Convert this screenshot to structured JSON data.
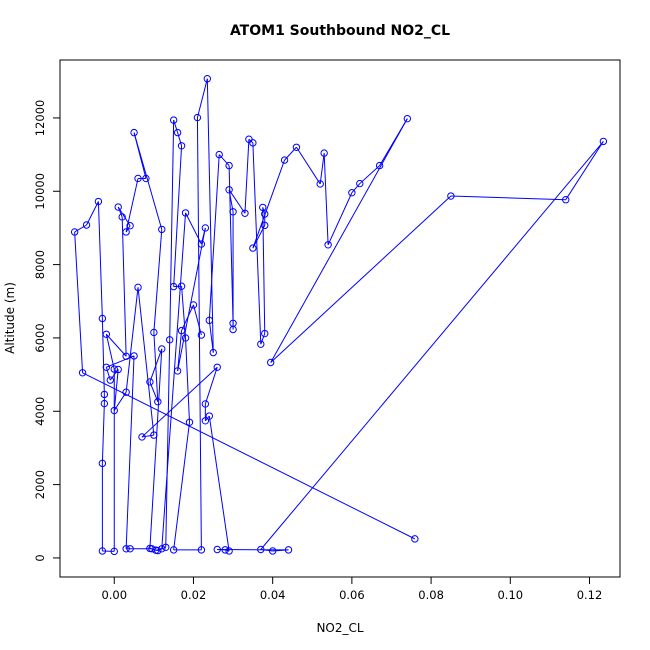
{
  "chart_data": {
    "type": "scatter",
    "title": "ATOM1 Southbound NO2_CL",
    "xlabel": "NO2_CL",
    "ylabel": "Altitude (m)",
    "xlim": [
      -0.0137,
      0.1277
    ],
    "ylim": [
      -520,
      13580
    ],
    "x_ticks": [
      0.0,
      0.02,
      0.04,
      0.06,
      0.08,
      0.1,
      0.12
    ],
    "x_tick_labels": [
      "0.00",
      "0.02",
      "0.04",
      "0.06",
      "0.08",
      "0.10",
      "0.12"
    ],
    "y_ticks": [
      0,
      2000,
      4000,
      6000,
      8000,
      10000,
      12000
    ],
    "y_tick_labels": [
      "0",
      "2000",
      "4000",
      "6000",
      "8000",
      "10000",
      "12000"
    ],
    "grid": false,
    "legend": "none",
    "style": "points connected by lines (type b), open circles",
    "series_color": "#0000ff",
    "series": [
      {
        "points": [
          [
            0.0759,
            520
          ],
          [
            -0.008,
            5050
          ],
          [
            -0.01,
            8890
          ],
          [
            -0.007,
            9080
          ],
          [
            -0.004,
            9720
          ],
          [
            -0.003,
            6530
          ],
          [
            -0.0025,
            4460
          ],
          [
            -0.0025,
            4210
          ],
          [
            -0.003,
            2580
          ],
          [
            -0.003,
            190
          ],
          [
            0.0,
            180
          ],
          [
            0.0,
            5150
          ],
          [
            -0.002,
            6100
          ],
          [
            0.003,
            5500
          ],
          [
            0.002,
            9300
          ],
          [
            0.001,
            9570
          ],
          [
            0.004,
            9060
          ],
          [
            0.003,
            8890
          ],
          [
            0.006,
            10350
          ],
          [
            0.008,
            10350
          ],
          [
            0.005,
            11600
          ],
          [
            0.012,
            8960
          ],
          [
            0.01,
            6150
          ],
          [
            0.011,
            4260
          ],
          [
            0.009,
            4800
          ],
          [
            0.012,
            5700
          ],
          [
            0.009,
            260
          ],
          [
            0.011,
            200
          ],
          [
            0.013,
            290
          ],
          [
            0.014,
            5950
          ],
          [
            0.015,
            11940
          ],
          [
            0.016,
            11600
          ],
          [
            0.017,
            11240
          ],
          [
            0.015,
            7400
          ],
          [
            0.017,
            7410
          ],
          [
            0.018,
            6000
          ],
          [
            0.019,
            3700
          ],
          [
            0.015,
            220
          ],
          [
            0.022,
            220
          ],
          [
            0.021,
            12010
          ],
          [
            0.0235,
            13070
          ],
          [
            0.025,
            5600
          ],
          [
            0.024,
            6480
          ],
          [
            0.0265,
            11000
          ],
          [
            0.029,
            10700
          ],
          [
            0.03,
            6400
          ],
          [
            0.03,
            6230
          ],
          [
            0.03,
            9440
          ],
          [
            0.029,
            10040
          ],
          [
            0.033,
            9400
          ],
          [
            0.034,
            11420
          ],
          [
            0.035,
            11320
          ],
          [
            0.037,
            5830
          ],
          [
            0.038,
            6120
          ],
          [
            0.0375,
            9560
          ],
          [
            0.038,
            9380
          ],
          [
            0.038,
            9070
          ],
          [
            0.035,
            8450
          ],
          [
            0.043,
            10850
          ],
          [
            0.046,
            11200
          ],
          [
            0.052,
            10200
          ],
          [
            0.053,
            11040
          ],
          [
            0.054,
            8540
          ],
          [
            0.06,
            9960
          ],
          [
            0.062,
            10210
          ],
          [
            0.067,
            10700
          ],
          [
            0.074,
            11980
          ],
          [
            0.0395,
            5330
          ],
          [
            0.085,
            9870
          ],
          [
            0.114,
            9770
          ],
          [
            0.1235,
            11360
          ],
          [
            0.037,
            230
          ],
          [
            0.04,
            190
          ],
          [
            0.044,
            220
          ],
          [
            0.026,
            230
          ],
          [
            0.028,
            220
          ],
          [
            0.029,
            190
          ],
          [
            0.024,
            3870
          ],
          [
            0.023,
            3740
          ],
          [
            0.023,
            4200
          ],
          [
            0.026,
            5200
          ],
          [
            0.007,
            3300
          ],
          [
            0.01,
            3350
          ],
          [
            0.006,
            7380
          ],
          [
            0.003,
            4520
          ],
          [
            0.0,
            4020
          ],
          [
            0.001,
            5140
          ],
          [
            -0.001,
            4850
          ],
          [
            -0.002,
            5200
          ],
          [
            0.005,
            5510
          ],
          [
            0.003,
            250
          ],
          [
            0.004,
            250
          ],
          [
            0.0095,
            250
          ],
          [
            0.0105,
            210
          ],
          [
            0.012,
            250
          ],
          [
            0.018,
            9410
          ],
          [
            0.022,
            8560
          ],
          [
            0.023,
            9000
          ],
          [
            0.016,
            5100
          ],
          [
            0.017,
            6200
          ],
          [
            0.02,
            6900
          ],
          [
            0.022,
            6080
          ]
        ]
      }
    ]
  }
}
